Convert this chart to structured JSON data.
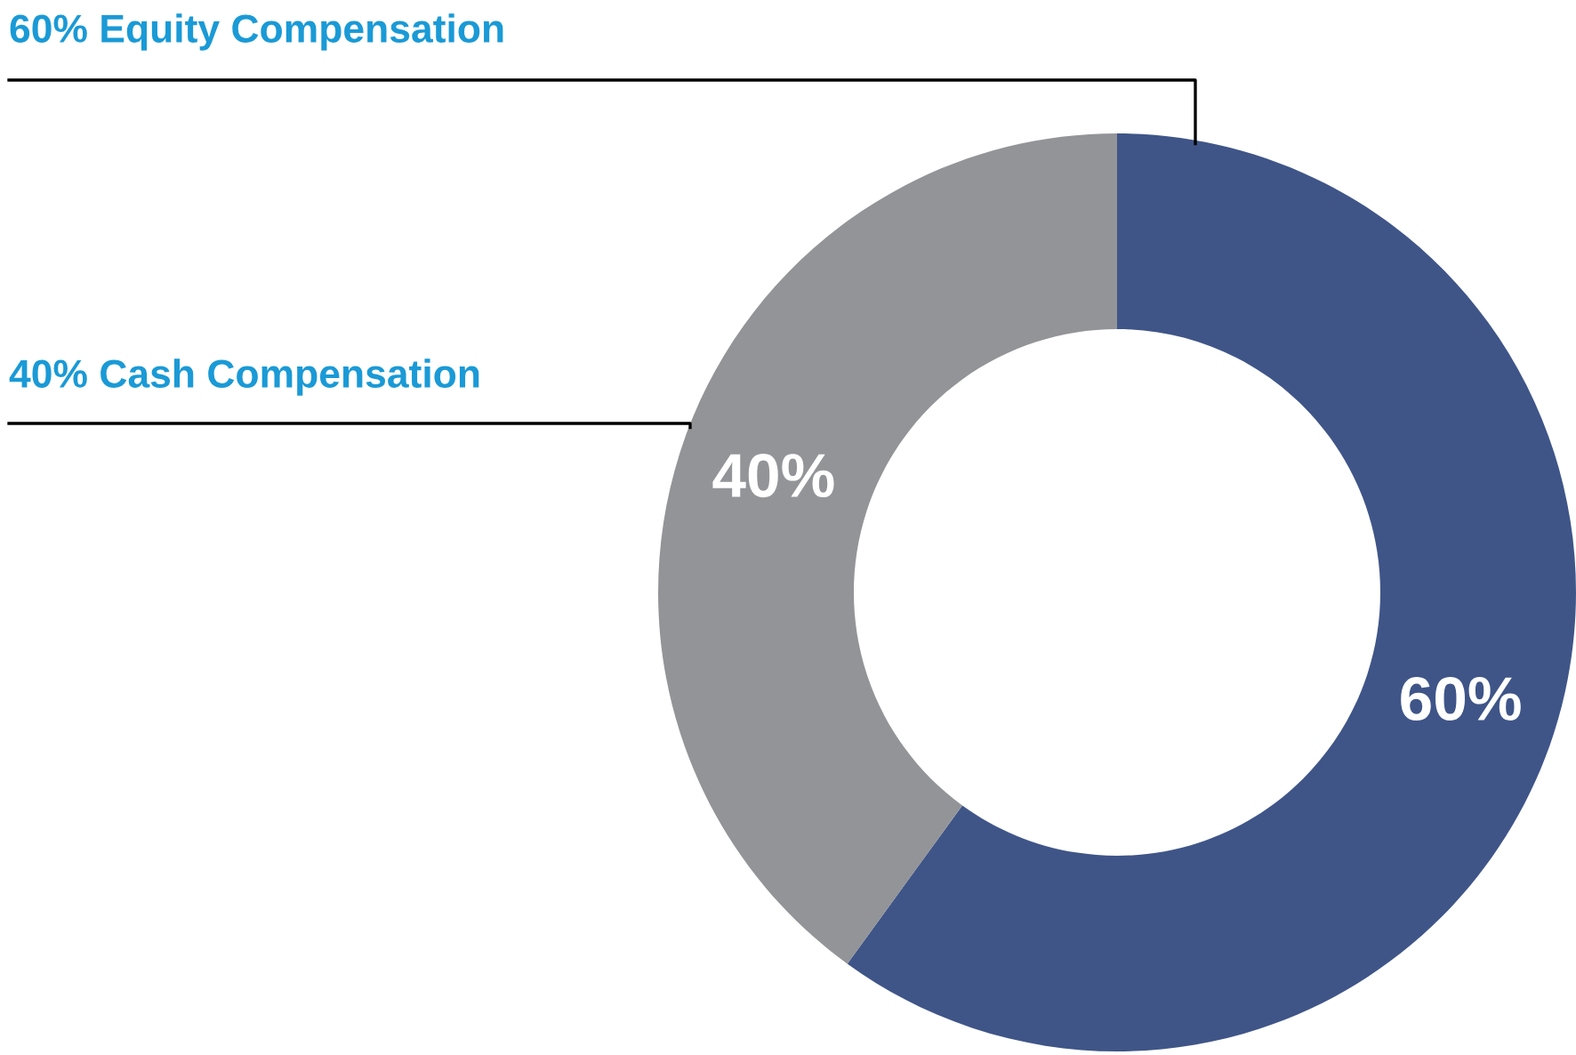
{
  "chart_data": {
    "type": "donut",
    "categories": [
      "60% Equity Compensation",
      "40% Cash Compensation"
    ],
    "values": [
      60,
      40
    ],
    "colors": [
      "#3f5588",
      "#939498"
    ],
    "value_labels": [
      "60%",
      "40%"
    ],
    "legend": false
  }
}
